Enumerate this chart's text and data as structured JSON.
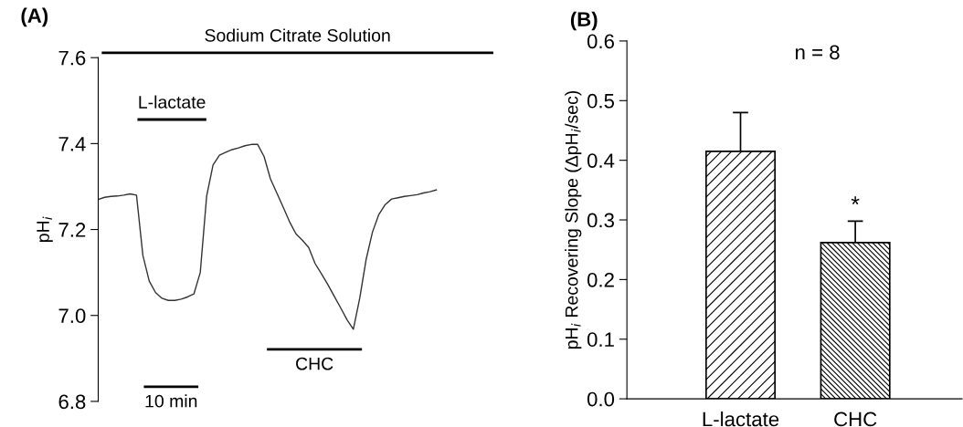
{
  "chart_data": [
    {
      "type": "line",
      "title": "(A)",
      "ylabel": "pH$_{i}$",
      "categories": [
        null,
        null,
        null,
        null,
        null,
        null,
        null,
        null,
        null,
        null,
        null,
        null,
        null,
        null,
        null,
        null,
        null,
        null,
        null,
        null,
        null,
        null,
        null,
        null,
        null,
        null,
        null,
        null,
        null,
        null,
        null,
        null,
        null,
        null,
        null,
        null,
        null,
        null,
        null,
        null,
        null,
        null,
        null,
        null,
        null,
        null,
        null,
        null,
        null,
        null,
        null,
        null,
        null,
        null
      ],
      "series": [
        {
          "color": "#333333",
          "values": [
            7.27,
            7.275,
            7.277,
            7.278,
            7.28,
            7.283,
            7.28,
            7.14,
            7.08,
            7.053,
            7.04,
            7.035,
            7.035,
            7.038,
            7.043,
            7.05,
            7.1,
            7.278,
            7.35,
            7.373,
            7.38,
            7.386,
            7.39,
            7.395,
            7.398,
            7.398,
            7.37,
            7.318,
            7.285,
            7.252,
            7.218,
            7.19,
            7.175,
            7.158,
            7.121,
            7.097,
            7.072,
            7.045,
            7.018,
            6.99,
            6.968,
            7.04,
            7.13,
            7.194,
            7.235,
            7.258,
            7.271,
            7.274,
            7.277,
            7.279,
            7.281,
            7.285,
            7.288,
            7.292
          ]
        }
      ],
      "ylim": [
        6.8,
        7.6
      ],
      "yticks": [
        {
          "value": 6.8,
          "label": "6.8"
        },
        {
          "value": 7.0,
          "label": "7.0"
        },
        {
          "value": 7.2,
          "label": "7.2"
        },
        {
          "value": 7.4,
          "label": "7.4"
        },
        {
          "value": 7.6,
          "label": "7.6"
        }
      ],
      "tick_labels": "y",
      "grid": false,
      "legend": false,
      "annotations": [
        "Sodium Citrate Solution",
        "L-lactate",
        "CHC",
        "10 min"
      ]
    },
    {
      "type": "bar",
      "title": "(B)",
      "ylabel": "pH$_{i}$ Recovering Slope (ΔpH$_{i}$/sec)",
      "categories": [
        "L-lactate",
        "CHC"
      ],
      "values": [
        0.415,
        0.262
      ],
      "errors": [
        [
          0.415,
          0.48
        ],
        [
          0.262,
          0.298
        ]
      ],
      "colors": [
        "#000000",
        "#000000"
      ],
      "ylim": [
        0.0,
        0.6
      ],
      "yticks": [
        {
          "value": 0.0,
          "label": "0.0"
        },
        {
          "value": 0.1,
          "label": "0.1"
        },
        {
          "value": 0.2,
          "label": "0.2"
        },
        {
          "value": 0.3,
          "label": "0.3"
        },
        {
          "value": 0.4,
          "label": "0.4"
        },
        {
          "value": 0.5,
          "label": "0.5"
        },
        {
          "value": 0.6,
          "label": "0.6"
        }
      ],
      "grid": false,
      "legend": false,
      "annotations": [
        "n = 8",
        {
          "text": "*",
          "x": "CHC",
          "y": 0.305
        }
      ]
    }
  ]
}
